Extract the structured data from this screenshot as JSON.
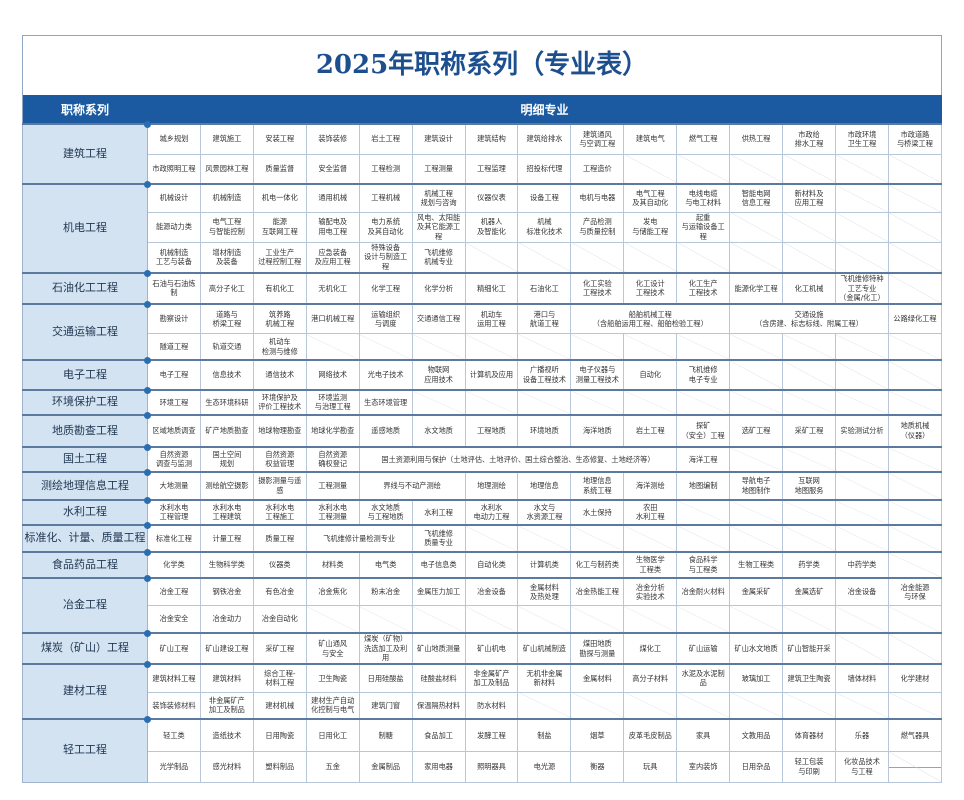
{
  "title": "2025年职称系列（专业表）",
  "header": {
    "series": "职称系列",
    "detail": "明细专业"
  },
  "colors": {
    "header_bg": "#1b5aa0",
    "label_bg": "#d3e3f2",
    "title": "#1d4f8f"
  },
  "groups": [
    {
      "label": "建筑工程",
      "rows": [
        [
          "城乡规划",
          "建筑施工",
          "安装工程",
          "装饰装修",
          "岩土工程",
          "建筑设计",
          "建筑结构",
          "建筑给排水",
          "建筑通风\n与空调工程",
          "建筑电气",
          "燃气工程",
          "供热工程",
          "市政给\n排水工程",
          "市政环境\n卫生工程",
          "市政道路\n与桥梁工程"
        ],
        [
          "市政照明工程",
          "风景园林工程",
          "质量监督",
          "安全监督",
          "工程检测",
          "工程测量",
          "工程监理",
          "招投标代理",
          "工程造价",
          null,
          null,
          null,
          null,
          null,
          null
        ]
      ]
    },
    {
      "label": "机电工程",
      "rows": [
        [
          "机械设计",
          "机械制造",
          "机电一体化",
          "通用机械",
          "工程机械",
          "机械工程\n规划与咨询",
          "仪器仪表",
          "设备工程",
          "电机与电器",
          "电气工程\n及其自动化",
          "电线电缆\n与电工材料",
          "智能电网\n信息工程",
          "新材料及\n应用工程",
          null,
          null
        ],
        [
          "能源动力类",
          "电气工程\n与智能控制",
          "能源\n互联网工程",
          "输配电及\n用电工程",
          "电力系统\n及其自动化",
          "风电、太阳能\n及其它能源工程",
          "机器人\n及智能化",
          "机械\n标准化技术",
          "产品检测\n与质量控制",
          "发电\n与储能工程",
          "起重\n与运输设备工程",
          null,
          null,
          null,
          null
        ],
        [
          "机械制造\n工艺与装备",
          "增材制造\n及装备",
          "工业生产\n过程控制工程",
          "应急装备\n及应用工程",
          "特殊设备\n设计与制造工程",
          "飞机维修\n机械专业",
          null,
          null,
          null,
          null,
          null,
          null,
          null,
          null,
          null
        ]
      ]
    },
    {
      "label": "石油化工工程",
      "rows": [
        [
          "石油与石油炼制",
          "高分子化工",
          "有机化工",
          "无机化工",
          "化学工程",
          "化学分析",
          "精细化工",
          "石油化工",
          "化工实验\n工程技术",
          "化工设计\n工程技术",
          "化工生产\n工程技术",
          "能源化学工程",
          "化工机械",
          "飞机维修特种\n工艺专业\n（金属/化工）",
          null
        ]
      ]
    },
    {
      "label": "交通运输工程",
      "rows": [
        [
          "勘察设计",
          "道路与\n桥梁工程",
          "筑养路\n机械工程",
          "港口机械工程",
          "运输组织\n与调度",
          "交通通信工程",
          "机动车\n运用工程",
          "港口与\n航道工程",
          {
            "t": "船舶机械工程\n（含船舶运用工程、船舶检验工程）",
            "span": 3
          },
          {
            "t": "交通设施\n（含房建、标志标线、附属工程）",
            "span": 3
          },
          "公路绿化工程"
        ],
        [
          "隧道工程",
          "轨道交通",
          "机动车\n检测与维修",
          null,
          null,
          null,
          null,
          null,
          null,
          null,
          null,
          null,
          null,
          null,
          null
        ]
      ]
    },
    {
      "label": "电子工程",
      "rows": [
        [
          "电子工程",
          "信息技术",
          "通信技术",
          "网络技术",
          "光电子技术",
          "物联网\n应用技术",
          "计算机及应用",
          "广播视听\n设备工程技术",
          "电子仪器与\n测量工程技术",
          "自动化",
          "飞机维修\n电子专业",
          null,
          null,
          null,
          null
        ]
      ]
    },
    {
      "label": "环境保护工程",
      "rows": [
        [
          "环境工程",
          "生态环境科研",
          "环境保护及\n评价工程技术",
          "环境监测\n与治理工程",
          "生态环境管理",
          null,
          null,
          null,
          null,
          null,
          null,
          null,
          null,
          null,
          null
        ]
      ]
    },
    {
      "label": "地质勘查工程",
      "rows": [
        [
          "区域地质调查",
          "矿产地质勘查",
          "地球物理勘查",
          "地球化学勘查",
          "遥感地质",
          "水文地质",
          "工程地质",
          "环境地质",
          "海洋地质",
          "岩土工程",
          "探矿\n（安全）工程",
          "选矿工程",
          "采矿工程",
          "实验测试分析",
          "地质机械\n（仪器）"
        ]
      ]
    },
    {
      "label": "国土工程",
      "rows": [
        [
          "自然资源\n调查与监测",
          "国土空间\n规划",
          "自然资源\n权益管理",
          "自然资源\n确权登记",
          {
            "t": "国土资源利用与保护（土地评估、土地评价、国土综合整治、生态修复、土地经济等）",
            "span": 6
          },
          "海洋工程",
          null,
          null,
          null,
          null
        ]
      ]
    },
    {
      "label": "测绘地理信息工程",
      "rows": [
        [
          "大地测量",
          "测绘航空摄影",
          "摄影测量与遥感",
          "工程测量",
          {
            "t": "界线与不动产测绘",
            "span": 2
          },
          "地理测绘",
          "地理信息",
          "地理信息\n系统工程",
          "海洋测绘",
          "地图编制",
          "导航电子\n地图制作",
          "互联网\n地图服务",
          null,
          null
        ]
      ]
    },
    {
      "label": "水利工程",
      "rows": [
        [
          "水利水电\n工程管理",
          "水利水电\n工程建筑",
          "水利水电\n工程施工",
          "水利水电\n工程测量",
          "水文地质\n与工程地质",
          "水利工程",
          "水利水\n电动力工程",
          "水文与\n水资源工程",
          "水土保持",
          "农田\n水利工程",
          null,
          null,
          null,
          null,
          null
        ]
      ]
    },
    {
      "label": "标准化、计量、质量工程",
      "rows": [
        [
          "标准化工程",
          "计量工程",
          "质量工程",
          {
            "t": "飞机维修计量检测专业",
            "span": 2
          },
          "飞机维修\n质量专业",
          null,
          null,
          null,
          null,
          null,
          null,
          null,
          null,
          null
        ]
      ]
    },
    {
      "label": "食品药品工程",
      "rows": [
        [
          "化学类",
          "生物科学类",
          "仪器类",
          "材料类",
          "电气类",
          "电子信息类",
          "自动化类",
          "计算机类",
          "化工与制药类",
          "生物医学\n工程类",
          "食品科学\n与工程类",
          "生物工程类",
          "药学类",
          "中药学类",
          null
        ]
      ]
    },
    {
      "label": "冶金工程",
      "rows": [
        [
          "冶金工程",
          "钢铁冶金",
          "有色冶金",
          "冶金焦化",
          "粉末冶金",
          "金属压力加工",
          "冶金设备",
          "金属材料\n及热处理",
          "冶金热能工程",
          "冶金分析\n实验技术",
          "冶金耐火材料",
          "金属采矿",
          "金属选矿",
          "冶金设备",
          "冶金能源\n与环保"
        ],
        [
          "冶金安全",
          "冶金动力",
          "冶金自动化",
          null,
          null,
          null,
          null,
          null,
          null,
          null,
          null,
          null,
          null,
          null,
          null
        ]
      ]
    },
    {
      "label": "煤炭（矿山）工程",
      "rows": [
        [
          "矿山工程",
          "矿山建设工程",
          "采矿工程",
          "矿山通风\n与安全",
          "煤炭（矿物）\n洗选加工及利用",
          "矿山地质测量",
          "矿山机电",
          "矿山机械制造",
          "煤田地质\n勘探与测量",
          "煤化工",
          "矿山运输",
          "矿山水文地质",
          "矿山智能开采",
          null,
          null
        ]
      ]
    },
    {
      "label": "建材工程",
      "rows": [
        [
          "建筑材料工程",
          "建筑材料",
          "综合工程-\n材料工程",
          "卫生陶瓷",
          "日用硅酸盐",
          "硅酸盐材料",
          "非金属矿产\n加工及制品",
          "无机非金属\n新材料",
          "金属材料",
          "高分子材料",
          "水泥及水泥制品",
          "玻璃加工",
          "建筑卫生陶瓷",
          "墙体材料",
          "化学建材"
        ],
        [
          "装饰装修材料",
          "非金属矿产\n加工及制品",
          "建材机械",
          "建材生产自动\n化控制与电气",
          "建筑门窗",
          "保温隔热材料",
          "防水材料",
          null,
          null,
          null,
          null,
          null,
          null,
          null,
          null
        ]
      ]
    },
    {
      "label": "轻工工程",
      "rows": [
        [
          "轻工类",
          "造纸技术",
          "日用陶瓷",
          "日用化工",
          "制糖",
          "食品加工",
          "发酵工程",
          "制盐",
          "烟草",
          "皮革毛皮制品",
          "家具",
          "文教用品",
          "体育器材",
          "乐器",
          "燃气器具"
        ],
        [
          "光学制品",
          "感光材料",
          "塑料制品",
          "五金",
          "金属制品",
          "家用电器",
          "照明器具",
          "电光源",
          "衡器",
          "玩具",
          "室内装饰",
          "日用杂品",
          "轻工包装\n与印刷",
          "化妆品技术\n与工程",
          null
        ]
      ]
    }
  ]
}
